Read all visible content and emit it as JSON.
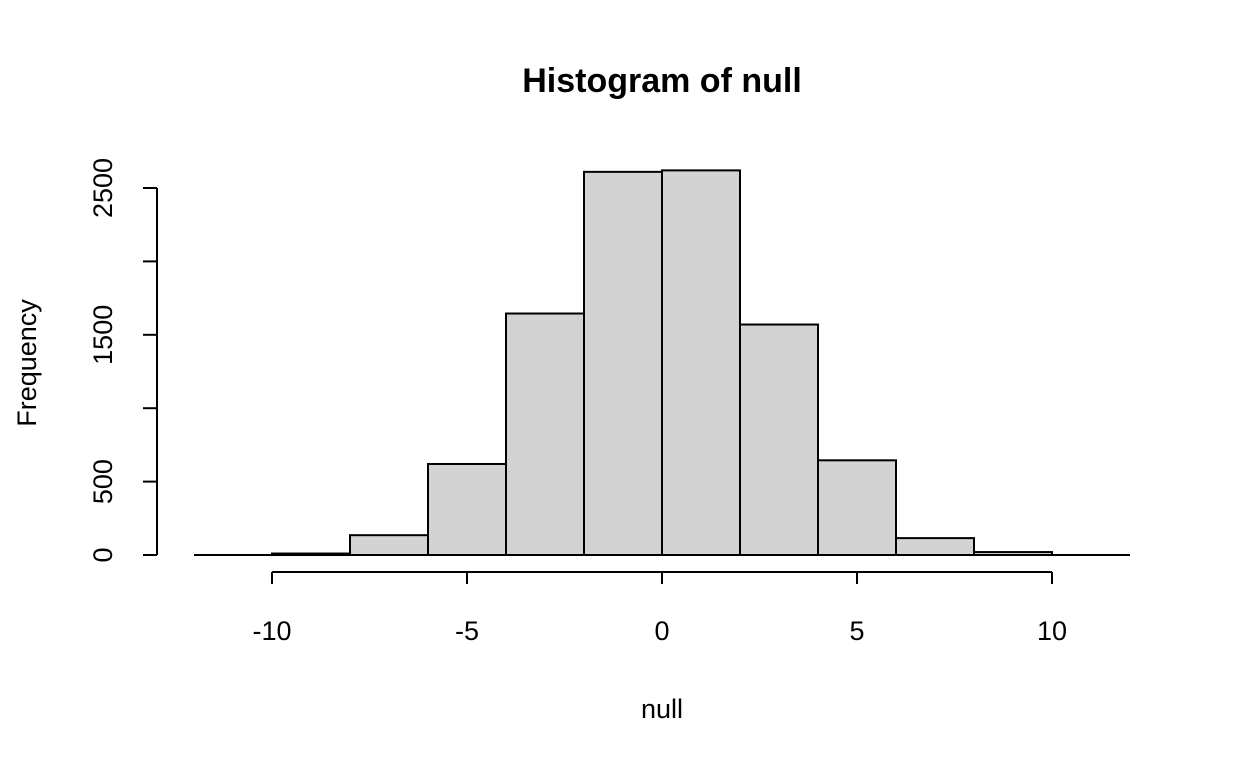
{
  "chart_data": {
    "type": "bar",
    "title": "Histogram of null",
    "xlabel": "null",
    "ylabel": "Frequency",
    "xlim": [
      -12,
      12
    ],
    "ylim": [
      0,
      2600
    ],
    "bins": [
      {
        "x0": -10,
        "x1": -8,
        "count": 10
      },
      {
        "x0": -8,
        "x1": -6,
        "count": 135
      },
      {
        "x0": -6,
        "x1": -4,
        "count": 620
      },
      {
        "x0": -4,
        "x1": -2,
        "count": 1645
      },
      {
        "x0": -2,
        "x1": 0,
        "count": 2610
      },
      {
        "x0": 0,
        "x1": 2,
        "count": 2620
      },
      {
        "x0": 2,
        "x1": 4,
        "count": 1570
      },
      {
        "x0": 4,
        "x1": 6,
        "count": 645
      },
      {
        "x0": 6,
        "x1": 8,
        "count": 115
      },
      {
        "x0": 8,
        "x1": 10,
        "count": 20
      }
    ],
    "x_ticks": [
      -10,
      -5,
      0,
      5,
      10
    ],
    "x_tick_labels": [
      "-10",
      "-5",
      "0",
      "5",
      "10"
    ],
    "y_ticks": [
      0,
      500,
      1000,
      1500,
      2000,
      2500
    ],
    "y_tick_labels": [
      "0",
      "500",
      "",
      "1500",
      "",
      "2500"
    ],
    "grid": false,
    "legend": "none"
  }
}
